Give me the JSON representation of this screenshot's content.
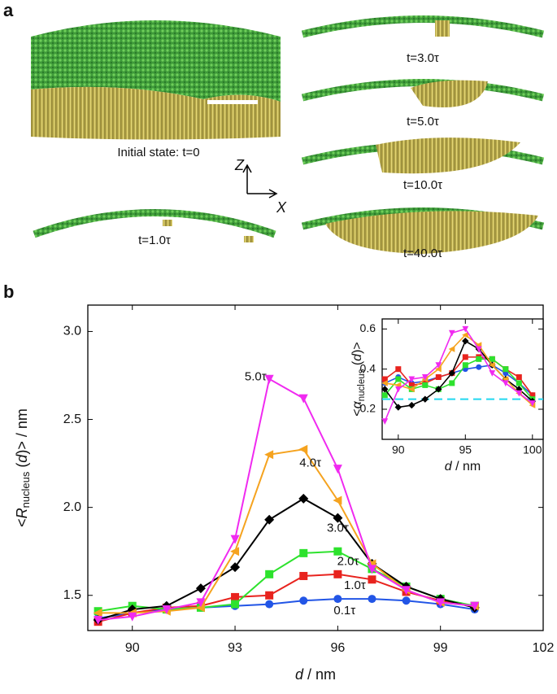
{
  "panel_a": {
    "label": "a",
    "initial": "Initial state: t=0",
    "axis_z": "Z",
    "axis_x": "X",
    "snapshots": [
      "t=1.0τ",
      "t=3.0τ",
      "t=5.0τ",
      "t=10.0τ",
      "t=40.0τ"
    ]
  },
  "panel_b": {
    "label": "b"
  },
  "chart_data": [
    {
      "type": "line",
      "xlabel_var": "d",
      "xlabel_unit": " / nm",
      "ylabel_pre": "<",
      "ylabel_var": "R",
      "ylabel_sub": "nucleus",
      "ylabel_mid": " (",
      "ylabel_arg": "d",
      "ylabel_post": ")> / nm",
      "x": [
        89,
        90,
        91,
        92,
        93,
        94,
        95,
        96,
        97,
        98,
        99,
        100
      ],
      "xlim": [
        88.7,
        102
      ],
      "xticks": [
        90,
        93,
        96,
        99,
        102
      ],
      "ylim": [
        1.3,
        3.15
      ],
      "yticks": [
        1.5,
        {
          "value": 2.0,
          "label": "2.0"
        },
        2.5,
        {
          "value": 3.0,
          "label": "3.0"
        }
      ],
      "series": [
        {
          "name": "0.1τ",
          "color": "#2255e6",
          "marker": "circle",
          "values": [
            1.37,
            1.4,
            1.42,
            1.43,
            1.44,
            1.45,
            1.47,
            1.48,
            1.48,
            1.47,
            1.45,
            1.42
          ]
        },
        {
          "name": "1.0τ",
          "color": "#e8231e",
          "marker": "square",
          "values": [
            1.35,
            1.4,
            1.43,
            1.44,
            1.49,
            1.5,
            1.61,
            1.62,
            1.59,
            1.52,
            1.47,
            1.44
          ]
        },
        {
          "name": "2.0τ",
          "color": "#2de22d",
          "marker": "square",
          "values": [
            1.41,
            1.44,
            1.42,
            1.43,
            1.45,
            1.62,
            1.74,
            1.75,
            1.65,
            1.55,
            1.48,
            1.44
          ]
        },
        {
          "name": "3.0τ",
          "color": "#000000",
          "marker": "diamond",
          "values": [
            1.36,
            1.42,
            1.44,
            1.54,
            1.66,
            1.93,
            2.05,
            1.94,
            1.68,
            1.55,
            1.48,
            1.43
          ]
        },
        {
          "name": "4.0τ",
          "color": "#f5a31f",
          "marker": "triangle-left",
          "values": [
            1.4,
            1.4,
            1.41,
            1.43,
            1.75,
            2.3,
            2.33,
            2.04,
            1.68,
            1.53,
            1.46,
            1.44
          ]
        },
        {
          "name": "5.0τ",
          "color": "#f02af0",
          "marker": "triangle-down",
          "values": [
            1.36,
            1.38,
            1.42,
            1.46,
            1.82,
            2.73,
            2.62,
            2.22,
            1.65,
            1.53,
            1.46,
            1.44
          ]
        }
      ]
    },
    {
      "type": "line",
      "xlabel_var": "d",
      "xlabel_unit": " / nm",
      "ylabel_pre": "<",
      "ylabel_var": "α",
      "ylabel_sub": "nucleus",
      "ylabel_mid": " (",
      "ylabel_arg": "d",
      "ylabel_post": ")>",
      "x": [
        89,
        90,
        91,
        92,
        93,
        94,
        95,
        96,
        97,
        98,
        99,
        100
      ],
      "xlim": [
        88.8,
        100.8
      ],
      "xticks": [
        90,
        95,
        100
      ],
      "ylim": [
        0.05,
        0.65
      ],
      "yticks": [
        0.2,
        0.4,
        0.6
      ],
      "reference_line": 0.25,
      "reference_color": "#22d8f0",
      "series": [
        {
          "color": "#2255e6",
          "marker": "circle",
          "values": [
            0.33,
            0.36,
            0.33,
            0.34,
            0.36,
            0.38,
            0.4,
            0.41,
            0.42,
            0.38,
            0.33,
            0.27
          ]
        },
        {
          "color": "#e8231e",
          "marker": "square",
          "values": [
            0.35,
            0.4,
            0.32,
            0.33,
            0.36,
            0.38,
            0.46,
            0.46,
            0.45,
            0.4,
            0.36,
            0.27
          ]
        },
        {
          "color": "#2de22d",
          "marker": "square",
          "values": [
            0.27,
            0.35,
            0.3,
            0.32,
            0.3,
            0.33,
            0.42,
            0.45,
            0.45,
            0.4,
            0.33,
            0.25
          ]
        },
        {
          "color": "#000000",
          "marker": "diamond",
          "values": [
            0.3,
            0.21,
            0.22,
            0.25,
            0.3,
            0.38,
            0.54,
            0.5,
            0.42,
            0.35,
            0.3,
            0.24
          ]
        },
        {
          "color": "#f5a31f",
          "marker": "triangle-left",
          "values": [
            0.33,
            0.32,
            0.3,
            0.35,
            0.4,
            0.5,
            0.57,
            0.52,
            0.42,
            0.35,
            0.28,
            0.22
          ]
        },
        {
          "color": "#f02af0",
          "marker": "triangle-down",
          "values": [
            0.14,
            0.3,
            0.35,
            0.36,
            0.42,
            0.58,
            0.6,
            0.5,
            0.38,
            0.33,
            0.28,
            0.23
          ]
        }
      ]
    }
  ]
}
